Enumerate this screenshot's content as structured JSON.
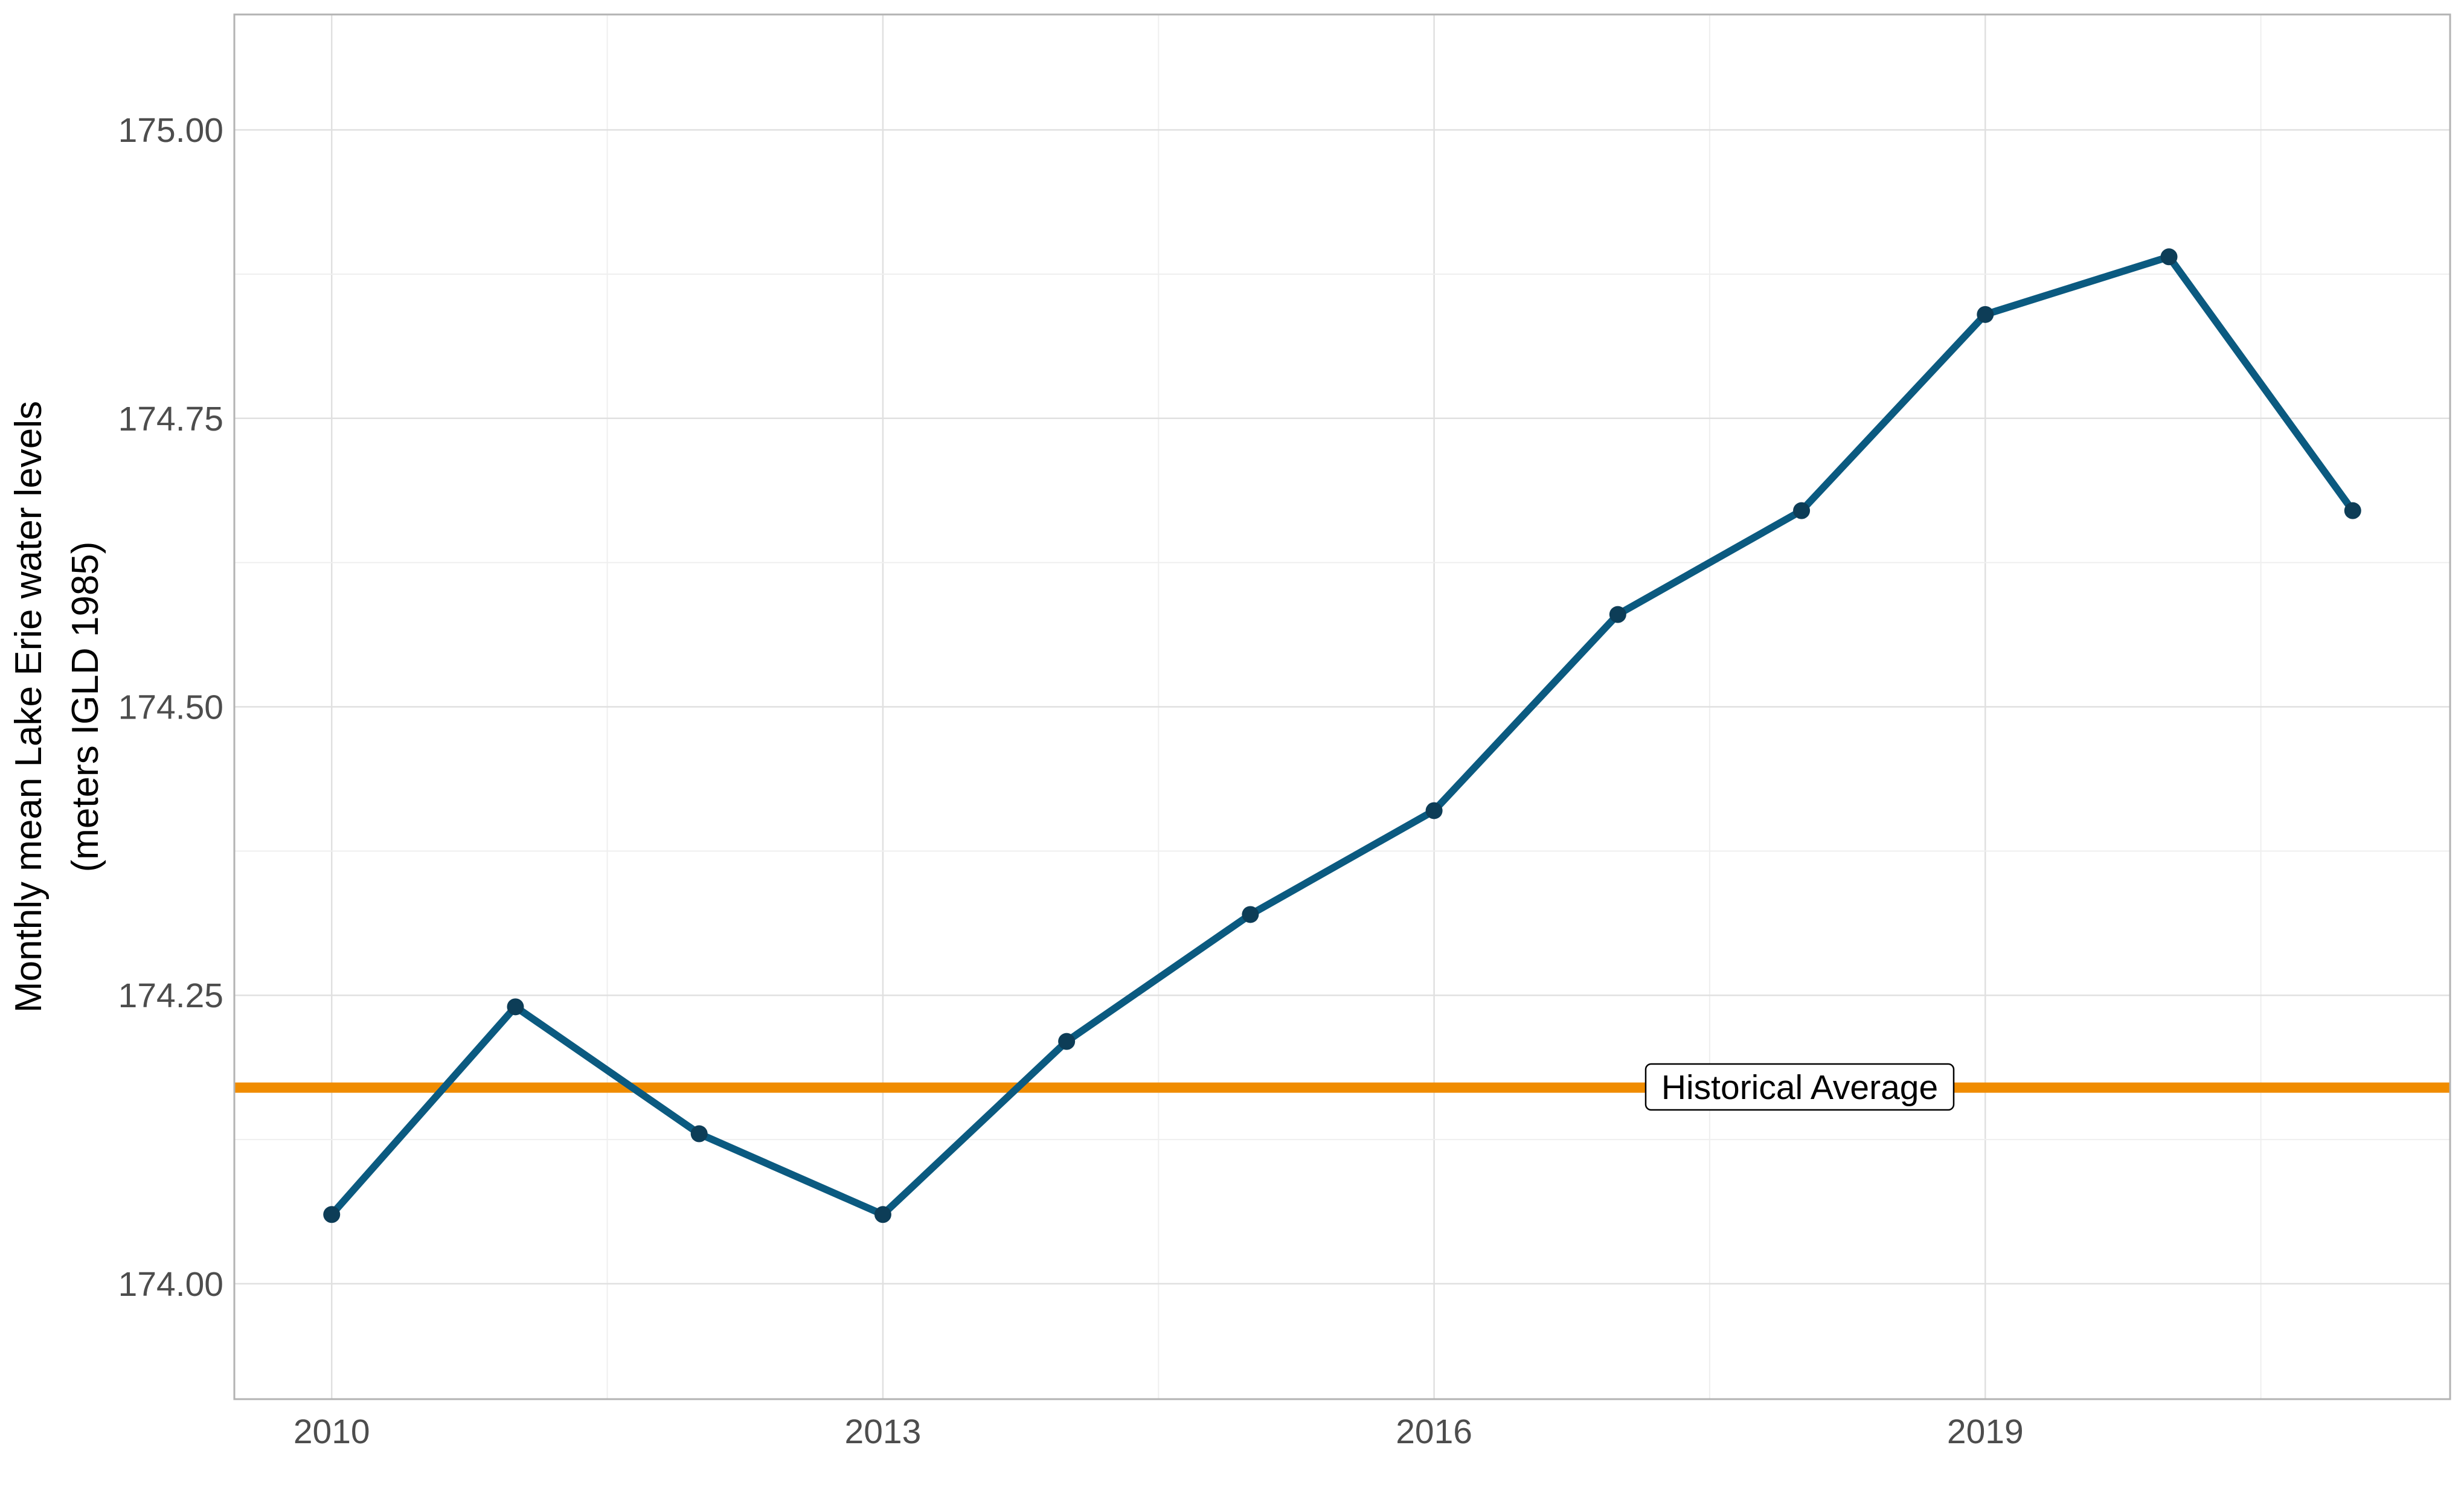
{
  "chart_data": {
    "type": "line",
    "title": "",
    "xlabel": "",
    "ylabel_line1": "Monthly mean Lake Erie water levels",
    "ylabel_line2": "(meters IGLD 1985)",
    "x": [
      2010,
      2011,
      2012,
      2013,
      2014,
      2015,
      2016,
      2017,
      2018,
      2019,
      2020,
      2021
    ],
    "series": [
      {
        "values": [
          174.06,
          174.24,
          174.13,
          174.06,
          174.21,
          174.32,
          174.41,
          174.58,
          174.67,
          174.84,
          174.89,
          174.67
        ],
        "color": "#0b5a80"
      }
    ],
    "reference_line": {
      "value": 174.17,
      "label": "Historical Average",
      "color": "#f08c00"
    },
    "xlim": [
      2009.47,
      2021.53
    ],
    "ylim": [
      173.9,
      175.1
    ],
    "x_ticks": [
      "2010",
      "2013",
      "2016",
      "2019"
    ],
    "y_ticks": [
      "174.00",
      "174.25",
      "174.50",
      "174.75",
      "175.00"
    ],
    "grid": true,
    "legend": "none",
    "point_color": "#0d3d57"
  }
}
